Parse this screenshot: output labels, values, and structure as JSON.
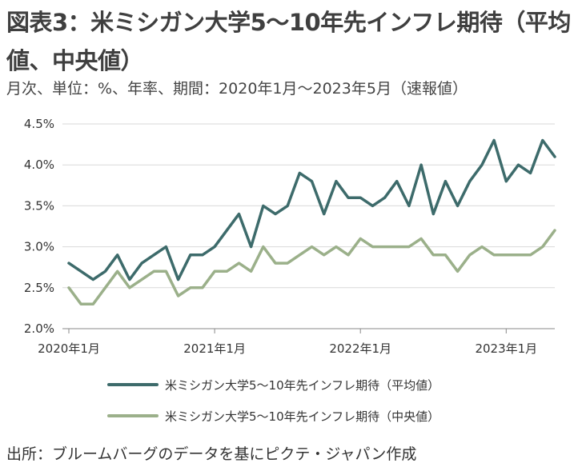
{
  "title": "図表3：米ミシガン大学5～10年先インフレ期待（平均値、中央値）",
  "subtitle": "月次、単位：%、年率、期間：2020年1月～2023年5月（速報値）",
  "source": "出所：ブルームバーグのデータを基にピクテ・ジャパン作成",
  "colors": {
    "mean": "#3d6b6b",
    "median": "#9bb08a",
    "grid": "#d9d9d9",
    "axis": "#888888"
  },
  "chart_data": {
    "type": "line",
    "title": "",
    "xlabel": "",
    "ylabel": "",
    "ylim": [
      2.0,
      4.5
    ],
    "yticks": [
      "2.0%",
      "2.5%",
      "3.0%",
      "3.5%",
      "4.0%",
      "4.5%"
    ],
    "ytick_values": [
      2.0,
      2.5,
      3.0,
      3.5,
      4.0,
      4.5
    ],
    "xtick_labels": [
      "2020年1月",
      "2021年1月",
      "2022年1月",
      "2023年1月"
    ],
    "xtick_index": [
      0,
      12,
      24,
      36
    ],
    "grid": true,
    "legend_position": "bottom",
    "x": [
      "2020-01",
      "2020-02",
      "2020-03",
      "2020-04",
      "2020-05",
      "2020-06",
      "2020-07",
      "2020-08",
      "2020-09",
      "2020-10",
      "2020-11",
      "2020-12",
      "2021-01",
      "2021-02",
      "2021-03",
      "2021-04",
      "2021-05",
      "2021-06",
      "2021-07",
      "2021-08",
      "2021-09",
      "2021-10",
      "2021-11",
      "2021-12",
      "2022-01",
      "2022-02",
      "2022-03",
      "2022-04",
      "2022-05",
      "2022-06",
      "2022-07",
      "2022-08",
      "2022-09",
      "2022-10",
      "2022-11",
      "2022-12",
      "2023-01",
      "2023-02",
      "2023-03",
      "2023-04",
      "2023-05"
    ],
    "series": [
      {
        "name": "米ミシガン大学5～10年先インフレ期待（平均値）",
        "values": [
          2.8,
          2.7,
          2.6,
          2.7,
          2.9,
          2.6,
          2.8,
          2.9,
          3.0,
          2.6,
          2.9,
          2.9,
          3.0,
          3.2,
          3.4,
          3.0,
          3.5,
          3.4,
          3.5,
          3.9,
          3.8,
          3.4,
          3.8,
          3.6,
          3.6,
          3.5,
          3.6,
          3.8,
          3.5,
          4.0,
          3.4,
          3.8,
          3.5,
          3.8,
          4.0,
          4.3,
          3.8,
          4.0,
          3.9,
          4.3,
          4.1
        ]
      },
      {
        "name": "米ミシガン大学5～10年先インフレ期待（中央値）",
        "values": [
          2.5,
          2.3,
          2.3,
          2.5,
          2.7,
          2.5,
          2.6,
          2.7,
          2.7,
          2.4,
          2.5,
          2.5,
          2.7,
          2.7,
          2.8,
          2.7,
          3.0,
          2.8,
          2.8,
          2.9,
          3.0,
          2.9,
          3.0,
          2.9,
          3.1,
          3.0,
          3.0,
          3.0,
          3.0,
          3.1,
          2.9,
          2.9,
          2.7,
          2.9,
          3.0,
          2.9,
          2.9,
          2.9,
          2.9,
          3.0,
          3.2
        ]
      }
    ]
  }
}
